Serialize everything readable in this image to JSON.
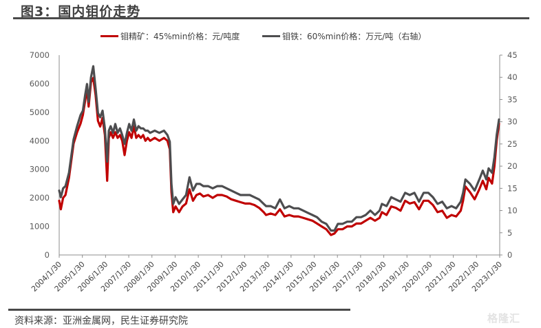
{
  "header": {
    "title": "图3：国内钼价走势"
  },
  "footer": {
    "source": "资料来源：亚洲金属网，民生证券研究院",
    "watermark": "格隆汇"
  },
  "legend": {
    "items": [
      {
        "label": "钼精矿：45%min价格：元/吨度",
        "color": "#c00000"
      },
      {
        "label": "钼铁：60%min价格：万元/吨（右轴）",
        "color": "#4d4d4f"
      }
    ]
  },
  "chart_data": {
    "type": "line",
    "title": "图3：国内钼价走势",
    "xlabel": "",
    "ylabel_left": "元/吨度",
    "ylabel_right": "万元/吨",
    "legend_position": "top",
    "grid": false,
    "x_ticks": [
      "2004/1/30",
      "2005/1/30",
      "2006/1/30",
      "2007/1/30",
      "2008/1/30",
      "2009/1/30",
      "2010/1/30",
      "2011/1/30",
      "2012/1/30",
      "2013/1/30",
      "2014/1/30",
      "2015/1/30",
      "2016/1/30",
      "2017/1/30",
      "2018/1/30",
      "2019/1/30",
      "2020/1/30",
      "2021/1/30",
      "2022/1/30",
      "2023/1/30"
    ],
    "y_left": {
      "ticks": [
        0,
        1000,
        2000,
        3000,
        4000,
        5000,
        6000,
        7000
      ],
      "range": [
        0,
        7000
      ]
    },
    "y_right": {
      "ticks": [
        0,
        5,
        10,
        15,
        20,
        25,
        30,
        35,
        40,
        45
      ],
      "range": [
        0,
        45
      ]
    },
    "series": [
      {
        "name": "钼精矿：45%min价格：元/吨度",
        "axis": "left",
        "color": "#c00000",
        "x": [
          2004.08,
          2004.15,
          2004.25,
          2004.35,
          2004.5,
          2004.7,
          2004.85,
          2005.0,
          2005.1,
          2005.2,
          2005.28,
          2005.35,
          2005.45,
          2005.55,
          2005.65,
          2005.75,
          2005.85,
          2005.95,
          2006.05,
          2006.15,
          2006.22,
          2006.3,
          2006.4,
          2006.5,
          2006.6,
          2006.7,
          2006.8,
          2006.9,
          2007.0,
          2007.1,
          2007.2,
          2007.3,
          2007.4,
          2007.5,
          2007.6,
          2007.7,
          2007.8,
          2007.9,
          2008.0,
          2008.2,
          2008.4,
          2008.6,
          2008.75,
          2008.85,
          2008.92,
          2009.0,
          2009.1,
          2009.25,
          2009.4,
          2009.55,
          2009.7,
          2009.85,
          2010.0,
          2010.15,
          2010.3,
          2010.5,
          2010.7,
          2010.9,
          2011.1,
          2011.3,
          2011.5,
          2011.7,
          2011.9,
          2012.1,
          2012.3,
          2012.5,
          2012.7,
          2012.9,
          2013.0,
          2013.2,
          2013.4,
          2013.6,
          2013.8,
          2014.0,
          2014.2,
          2014.4,
          2014.6,
          2014.8,
          2015.0,
          2015.2,
          2015.4,
          2015.6,
          2015.8,
          2015.95,
          2016.1,
          2016.3,
          2016.5,
          2016.7,
          2016.9,
          2017.1,
          2017.3,
          2017.5,
          2017.7,
          2017.9,
          2018.0,
          2018.2,
          2018.4,
          2018.6,
          2018.8,
          2019.0,
          2019.2,
          2019.4,
          2019.6,
          2019.8,
          2020.0,
          2020.2,
          2020.4,
          2020.6,
          2020.8,
          2021.0,
          2021.2,
          2021.4,
          2021.5,
          2021.6,
          2021.8,
          2022.0,
          2022.2,
          2022.35,
          2022.5,
          2022.6,
          2022.75,
          2022.85,
          2022.95,
          2023.05
        ],
        "values": [
          1900,
          1600,
          2000,
          2100,
          2700,
          3900,
          4300,
          4600,
          4900,
          5400,
          5800,
          5200,
          6050,
          6200,
          5600,
          4700,
          4500,
          4800,
          4200,
          2600,
          4100,
          4300,
          4100,
          4300,
          4100,
          4200,
          4000,
          3500,
          4000,
          4300,
          4100,
          4500,
          4100,
          4200,
          4100,
          4200,
          4000,
          4100,
          4000,
          4100,
          4000,
          4100,
          4000,
          3700,
          2200,
          1500,
          1700,
          1500,
          1700,
          1800,
          2300,
          1900,
          2100,
          2150,
          2050,
          2100,
          2000,
          2100,
          2100,
          2050,
          1950,
          1900,
          1850,
          1800,
          1800,
          1750,
          1650,
          1500,
          1400,
          1450,
          1400,
          1600,
          1350,
          1400,
          1350,
          1350,
          1300,
          1250,
          1200,
          1100,
          1000,
          900,
          700,
          750,
          900,
          900,
          1000,
          1000,
          1100,
          1100,
          1200,
          1300,
          1200,
          1300,
          1500,
          1400,
          1700,
          1650,
          1550,
          1900,
          1800,
          1850,
          1600,
          1900,
          1900,
          1750,
          1500,
          1550,
          1300,
          1400,
          1350,
          1550,
          1900,
          2400,
          2200,
          1950,
          2300,
          2600,
          2300,
          2700,
          2500,
          3100,
          4000,
          4600
        ]
      },
      {
        "name": "钼铁：60%min价格：万元/吨（右轴）",
        "axis": "right",
        "color": "#4d4d4f",
        "x": [
          2004.08,
          2004.15,
          2004.25,
          2004.35,
          2004.5,
          2004.7,
          2004.85,
          2005.0,
          2005.1,
          2005.2,
          2005.28,
          2005.35,
          2005.45,
          2005.55,
          2005.65,
          2005.75,
          2005.85,
          2005.95,
          2006.05,
          2006.15,
          2006.22,
          2006.3,
          2006.4,
          2006.5,
          2006.6,
          2006.7,
          2006.8,
          2006.9,
          2007.0,
          2007.1,
          2007.2,
          2007.3,
          2007.4,
          2007.5,
          2007.6,
          2007.7,
          2007.8,
          2007.9,
          2008.0,
          2008.2,
          2008.4,
          2008.6,
          2008.75,
          2008.85,
          2008.92,
          2009.0,
          2009.1,
          2009.25,
          2009.4,
          2009.55,
          2009.7,
          2009.85,
          2010.0,
          2010.15,
          2010.3,
          2010.5,
          2010.7,
          2010.9,
          2011.1,
          2011.3,
          2011.5,
          2011.7,
          2011.9,
          2012.1,
          2012.3,
          2012.5,
          2012.7,
          2012.9,
          2013.0,
          2013.2,
          2013.4,
          2013.6,
          2013.8,
          2014.0,
          2014.2,
          2014.4,
          2014.6,
          2014.8,
          2015.0,
          2015.2,
          2015.4,
          2015.6,
          2015.8,
          2015.95,
          2016.1,
          2016.3,
          2016.5,
          2016.7,
          2016.9,
          2017.1,
          2017.3,
          2017.5,
          2017.7,
          2017.9,
          2018.0,
          2018.2,
          2018.4,
          2018.6,
          2018.8,
          2019.0,
          2019.2,
          2019.4,
          2019.6,
          2019.8,
          2020.0,
          2020.2,
          2020.4,
          2020.6,
          2020.8,
          2021.0,
          2021.2,
          2021.4,
          2021.5,
          2021.6,
          2021.8,
          2022.0,
          2022.2,
          2022.35,
          2022.5,
          2022.6,
          2022.75,
          2022.85,
          2022.95,
          2023.05
        ],
        "values": [
          14.5,
          13.0,
          15.0,
          15.5,
          18.5,
          26.0,
          29.0,
          31.5,
          32.5,
          36.0,
          38.5,
          34.5,
          40.0,
          42.5,
          37.5,
          32.0,
          31.0,
          32.5,
          28.5,
          21.0,
          28.0,
          29.0,
          27.5,
          29.5,
          27.5,
          28.5,
          27.0,
          25.0,
          27.5,
          29.5,
          28.0,
          30.5,
          28.0,
          29.0,
          28.5,
          28.5,
          28.0,
          28.0,
          27.5,
          28.0,
          27.5,
          28.0,
          27.0,
          25.5,
          16.0,
          11.5,
          13.0,
          11.5,
          12.5,
          13.5,
          17.5,
          14.5,
          16.0,
          16.0,
          15.5,
          15.5,
          15.0,
          15.5,
          15.5,
          15.0,
          14.5,
          14.0,
          13.5,
          13.5,
          13.5,
          13.0,
          12.5,
          11.5,
          11.0,
          11.0,
          10.5,
          12.5,
          10.5,
          11.0,
          10.5,
          10.5,
          10.0,
          9.5,
          9.0,
          8.5,
          7.5,
          7.0,
          5.5,
          5.5,
          7.0,
          7.0,
          7.5,
          7.5,
          8.5,
          8.5,
          9.0,
          10.0,
          9.0,
          10.0,
          11.5,
          11.0,
          13.0,
          12.5,
          12.0,
          14.0,
          13.5,
          14.0,
          12.0,
          14.0,
          14.0,
          13.0,
          11.5,
          12.0,
          10.5,
          11.0,
          10.5,
          12.0,
          14.0,
          17.0,
          16.0,
          14.5,
          17.0,
          19.0,
          17.0,
          19.5,
          18.5,
          22.0,
          27.0,
          30.5
        ]
      }
    ]
  }
}
